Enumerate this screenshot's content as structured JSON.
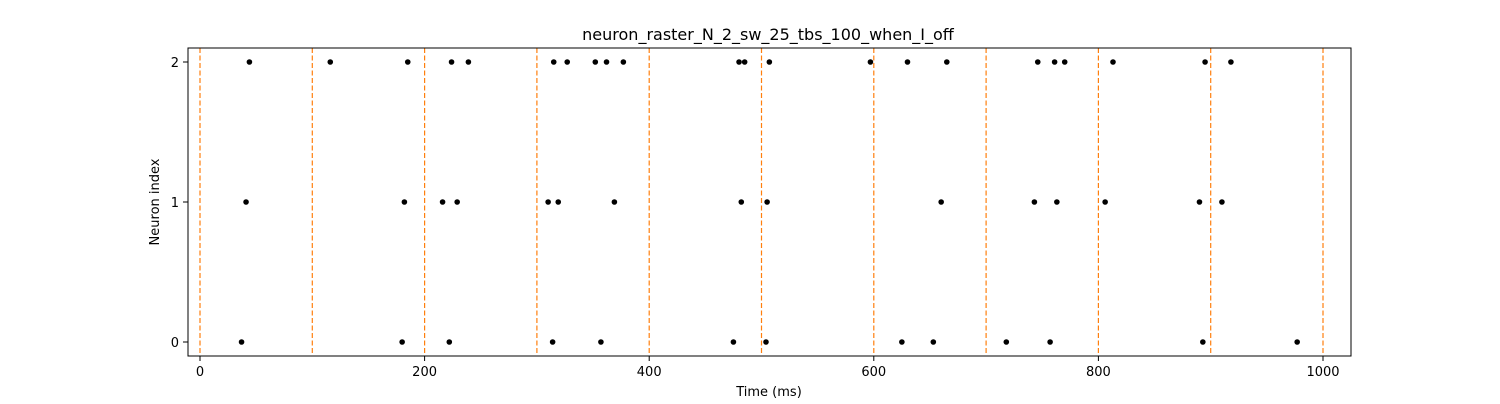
{
  "chart_data": {
    "type": "scatter",
    "title": "neuron_raster_N_2_sw_25_tbs_100_when_I_off",
    "xlabel": "Time (ms)",
    "ylabel": "Neuron index",
    "xlim": [
      -12,
      1025
    ],
    "ylim": [
      -0.1,
      2.1
    ],
    "xticks": [
      0,
      200,
      400,
      600,
      800,
      1000
    ],
    "xtick_labels": [
      "0",
      "200",
      "400",
      "600",
      "800",
      "1000"
    ],
    "yticks": [
      0,
      1,
      2
    ],
    "ytick_labels": [
      "0",
      "1",
      "2"
    ],
    "grid": false,
    "legend": "none",
    "colors": {
      "spikes": "#000000",
      "markers": "#ff7f0e",
      "axes": "#000000"
    },
    "vlines": [
      0,
      100,
      200,
      300,
      400,
      500,
      600,
      700,
      800,
      900,
      1000
    ],
    "series": [
      {
        "y": 0,
        "x": [
          37,
          180,
          222,
          314,
          357,
          475,
          504,
          625,
          653,
          718,
          757,
          893,
          977
        ]
      },
      {
        "y": 1,
        "x": [
          41,
          182,
          216,
          229,
          310,
          319,
          369,
          482,
          505,
          660,
          743,
          763,
          806,
          890,
          910
        ]
      },
      {
        "y": 2,
        "x": [
          44,
          116,
          185,
          224,
          239,
          315,
          327,
          352,
          362,
          377,
          480,
          485,
          507,
          597,
          630,
          665,
          746,
          761,
          770,
          813,
          895,
          918
        ]
      }
    ]
  }
}
